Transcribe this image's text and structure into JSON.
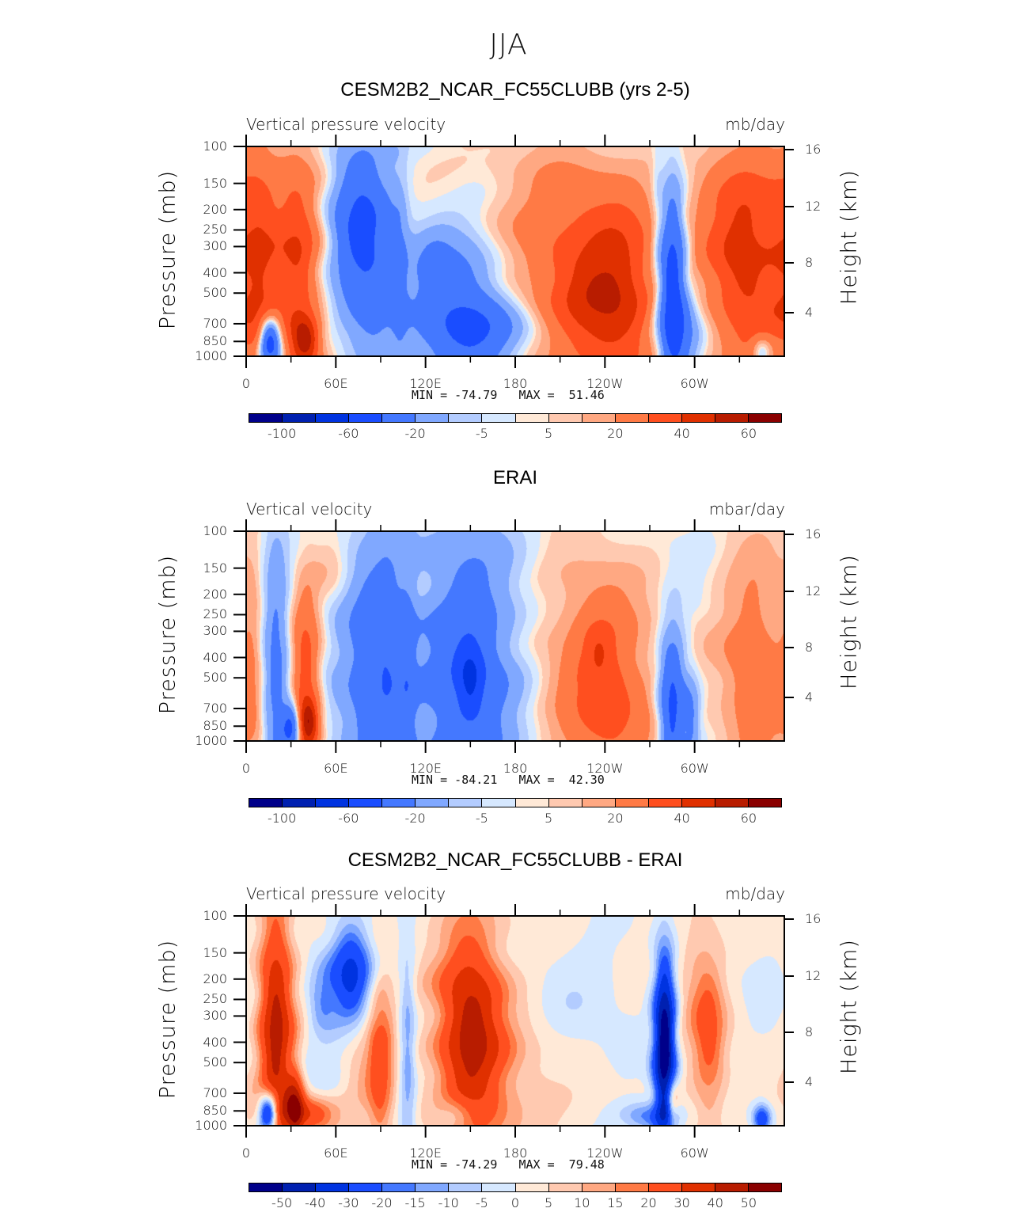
{
  "figure": {
    "title": "JJA"
  },
  "colormap": [
    "#00008a",
    "#0020b0",
    "#0033e0",
    "#1a4dff",
    "#4478ff",
    "#80a8ff",
    "#b3ccff",
    "#d6e8ff",
    "#ffe9d7",
    "#ffc9b0",
    "#ffa882",
    "#ff7a45",
    "#ff4f1f",
    "#e03000",
    "#b81c00",
    "#8a0000"
  ],
  "chart_data": [
    {
      "type": "heatmap",
      "title": "CESM2B2_NCAR_FC55CLUBB (yrs 2-5)",
      "left_string": "Vertical pressure velocity",
      "right_string": "mb/day",
      "xlabel": "",
      "ylabel": "Pressure (mb)",
      "ylabel_right": "Height (km)",
      "x_range": [
        0,
        360
      ],
      "x_ticks": [
        0,
        60,
        120,
        180,
        240,
        300
      ],
      "x_tick_labels": [
        "0",
        "60E",
        "120E",
        "180",
        "120W",
        "60W"
      ],
      "x_minor_ticks": [
        30,
        90,
        150,
        210,
        270,
        330
      ],
      "y_range": [
        100,
        1000
      ],
      "y_scale": "log",
      "y_ticks": [
        100,
        150,
        200,
        250,
        300,
        400,
        500,
        700,
        850,
        1000
      ],
      "y_tick_labels": [
        "100",
        "150",
        "200",
        "250",
        "300",
        "400",
        "500",
        "700",
        "850",
        "1000"
      ],
      "y_right_ticks": [
        16,
        12,
        8,
        4
      ],
      "y_right_tick_labels": [
        "16",
        "12",
        "8",
        "4"
      ],
      "min_label": "MIN = -74.79",
      "max_label": "MAX =  51.46",
      "min": -74.79,
      "max": 51.46,
      "levels": [
        -100,
        -80,
        -60,
        -40,
        -20,
        -10,
        -5,
        -1,
        1,
        5,
        10,
        20,
        30,
        40,
        50
      ],
      "colorbar_labels": [
        {
          "edge": 1,
          "text": "-100"
        },
        {
          "edge": 3,
          "text": "-60"
        },
        {
          "edge": 5,
          "text": "-20"
        },
        {
          "edge": 7,
          "text": "-5"
        },
        {
          "edge": 9,
          "text": "5"
        },
        {
          "edge": 11,
          "text": "20"
        },
        {
          "edge": 13,
          "text": "40"
        },
        {
          "edge": 15,
          "text": "60"
        }
      ],
      "background": 2,
      "features": [
        {
          "lon": 8,
          "p": 420,
          "slon": 10,
          "sp": 0.35,
          "v": 22
        },
        {
          "lon": 35,
          "p": 450,
          "slon": 10,
          "sp": 0.4,
          "v": 22
        },
        {
          "lon": 40,
          "p": 830,
          "slon": 7,
          "sp": 0.08,
          "v": 32
        },
        {
          "lon": 20,
          "p": 200,
          "slon": 25,
          "sp": 0.3,
          "v": 8
        },
        {
          "lon": 16,
          "p": 870,
          "slon": 5,
          "sp": 0.08,
          "v": -65
        },
        {
          "lon": 75,
          "p": 230,
          "slon": 14,
          "sp": 0.3,
          "v": -38
        },
        {
          "lon": 85,
          "p": 450,
          "slon": 14,
          "sp": 0.35,
          "v": -18
        },
        {
          "lon": 103,
          "p": 400,
          "slon": 4,
          "sp": 0.35,
          "v": -12
        },
        {
          "lon": 140,
          "p": 620,
          "slon": 22,
          "sp": 0.28,
          "v": -34
        },
        {
          "lon": 158,
          "p": 780,
          "slon": 18,
          "sp": 0.12,
          "v": -24
        },
        {
          "lon": 125,
          "p": 360,
          "slon": 10,
          "sp": 0.15,
          "v": -10
        },
        {
          "lon": 212,
          "p": 280,
          "slon": 35,
          "sp": 0.3,
          "v": 12
        },
        {
          "lon": 235,
          "p": 560,
          "slon": 22,
          "sp": 0.3,
          "v": 26
        },
        {
          "lon": 255,
          "p": 500,
          "slon": 15,
          "sp": 0.3,
          "v": 14
        },
        {
          "lon": 285,
          "p": 420,
          "slon": 6,
          "sp": 0.3,
          "v": -55
        },
        {
          "lon": 290,
          "p": 800,
          "slon": 10,
          "sp": 0.15,
          "v": -30
        },
        {
          "lon": 275,
          "p": 180,
          "slon": 3,
          "sp": 0.25,
          "v": -6
        },
        {
          "lon": 335,
          "p": 420,
          "slon": 18,
          "sp": 0.35,
          "v": 28
        },
        {
          "lon": 320,
          "p": 200,
          "slon": 20,
          "sp": 0.2,
          "v": 10
        },
        {
          "lon": 345,
          "p": 960,
          "slon": 4,
          "sp": 0.05,
          "v": -20
        },
        {
          "lon": 180,
          "p": 100,
          "slon": 180,
          "sp": 0.06,
          "v": -2
        }
      ]
    },
    {
      "type": "heatmap",
      "title": "ERAI",
      "left_string": "Vertical velocity",
      "right_string": "mbar/day",
      "xlabel": "",
      "ylabel": "Pressure (mb)",
      "ylabel_right": "Height (km)",
      "x_range": [
        0,
        360
      ],
      "x_ticks": [
        0,
        60,
        120,
        180,
        240,
        300
      ],
      "x_tick_labels": [
        "0",
        "60E",
        "120E",
        "180",
        "120W",
        "60W"
      ],
      "x_minor_ticks": [
        30,
        90,
        150,
        210,
        270,
        330
      ],
      "y_range": [
        100,
        1000
      ],
      "y_scale": "log",
      "y_ticks": [
        100,
        150,
        200,
        250,
        300,
        400,
        500,
        700,
        850,
        1000
      ],
      "y_tick_labels": [
        "100",
        "150",
        "200",
        "250",
        "300",
        "400",
        "500",
        "700",
        "850",
        "1000"
      ],
      "y_right_ticks": [
        16,
        12,
        8,
        4
      ],
      "y_right_tick_labels": [
        "16",
        "12",
        "8",
        "4"
      ],
      "min_label": "MIN = -84.21",
      "max_label": "MAX =  42.30",
      "min": -84.21,
      "max": 42.3,
      "levels": [
        -100,
        -80,
        -60,
        -40,
        -20,
        -10,
        -5,
        -1,
        1,
        5,
        10,
        20,
        30,
        40,
        50
      ],
      "colorbar_labels": [
        {
          "edge": 1,
          "text": "-100"
        },
        {
          "edge": 3,
          "text": "-60"
        },
        {
          "edge": 5,
          "text": "-20"
        },
        {
          "edge": 7,
          "text": "-5"
        },
        {
          "edge": 9,
          "text": "5"
        },
        {
          "edge": 11,
          "text": "20"
        },
        {
          "edge": 13,
          "text": "40"
        },
        {
          "edge": 15,
          "text": "60"
        }
      ],
      "background": -2,
      "features": [
        {
          "lon": 4,
          "p": 450,
          "slon": 5,
          "sp": 0.4,
          "v": 8
        },
        {
          "lon": 20,
          "p": 480,
          "slon": 6,
          "sp": 0.4,
          "v": -26
        },
        {
          "lon": 30,
          "p": 880,
          "slon": 4,
          "sp": 0.08,
          "v": -45
        },
        {
          "lon": 40,
          "p": 560,
          "slon": 7,
          "sp": 0.35,
          "v": 28
        },
        {
          "lon": 42,
          "p": 820,
          "slon": 5,
          "sp": 0.08,
          "v": 30
        },
        {
          "lon": 58,
          "p": 150,
          "slon": 10,
          "sp": 0.1,
          "v": 8
        },
        {
          "lon": 85,
          "p": 470,
          "slon": 16,
          "sp": 0.45,
          "v": -28
        },
        {
          "lon": 95,
          "p": 420,
          "slon": 7,
          "sp": 0.3,
          "v": -15
        },
        {
          "lon": 108,
          "p": 500,
          "slon": 4,
          "sp": 0.4,
          "v": -15
        },
        {
          "lon": 148,
          "p": 520,
          "slon": 22,
          "sp": 0.45,
          "v": -36
        },
        {
          "lon": 150,
          "p": 500,
          "slon": 6,
          "sp": 0.12,
          "v": -30
        },
        {
          "lon": 235,
          "p": 480,
          "slon": 28,
          "sp": 0.45,
          "v": 18
        },
        {
          "lon": 236,
          "p": 350,
          "slon": 8,
          "sp": 0.1,
          "v": 12
        },
        {
          "lon": 245,
          "p": 750,
          "slon": 18,
          "sp": 0.2,
          "v": 12
        },
        {
          "lon": 285,
          "p": 700,
          "slon": 6,
          "sp": 0.25,
          "v": -48
        },
        {
          "lon": 298,
          "p": 800,
          "slon": 4,
          "sp": 0.15,
          "v": -20
        },
        {
          "lon": 340,
          "p": 500,
          "slon": 18,
          "sp": 0.45,
          "v": 18
        },
        {
          "lon": 180,
          "p": 120,
          "slon": 60,
          "sp": 0.1,
          "v": -2
        }
      ]
    },
    {
      "type": "heatmap",
      "title": "CESM2B2_NCAR_FC55CLUBB - ERAI",
      "left_string": "Vertical pressure velocity",
      "right_string": "mb/day",
      "xlabel": "",
      "ylabel": "Pressure (mb)",
      "ylabel_right": "Height (km)",
      "x_range": [
        0,
        360
      ],
      "x_ticks": [
        0,
        60,
        120,
        180,
        240,
        300
      ],
      "x_tick_labels": [
        "0",
        "60E",
        "120E",
        "180",
        "120W",
        "60W"
      ],
      "x_minor_ticks": [
        30,
        90,
        150,
        210,
        270,
        330
      ],
      "y_range": [
        100,
        1000
      ],
      "y_scale": "log",
      "y_ticks": [
        100,
        150,
        200,
        250,
        300,
        400,
        500,
        700,
        850,
        1000
      ],
      "y_tick_labels": [
        "100",
        "150",
        "200",
        "250",
        "300",
        "400",
        "500",
        "700",
        "850",
        "1000"
      ],
      "y_right_ticks": [
        16,
        12,
        8,
        4
      ],
      "y_right_tick_labels": [
        "16",
        "12",
        "8",
        "4"
      ],
      "min_label": "MIN = -74.29",
      "max_label": "MAX =  79.48",
      "min": -74.29,
      "max": 79.48,
      "levels": [
        -50,
        -40,
        -30,
        -20,
        -15,
        -10,
        -5,
        0,
        5,
        10,
        15,
        20,
        30,
        40,
        50
      ],
      "colorbar_labels": [
        {
          "edge": 1,
          "text": "-50"
        },
        {
          "edge": 2,
          "text": "-40"
        },
        {
          "edge": 3,
          "text": "-30"
        },
        {
          "edge": 4,
          "text": "-20"
        },
        {
          "edge": 5,
          "text": "-15"
        },
        {
          "edge": 6,
          "text": "-10"
        },
        {
          "edge": 7,
          "text": "-5"
        },
        {
          "edge": 8,
          "text": "0"
        },
        {
          "edge": 9,
          "text": "5"
        },
        {
          "edge": 10,
          "text": "10"
        },
        {
          "edge": 11,
          "text": "15"
        },
        {
          "edge": 12,
          "text": "20"
        },
        {
          "edge": 13,
          "text": "30"
        },
        {
          "edge": 14,
          "text": "40"
        },
        {
          "edge": 15,
          "text": "50"
        }
      ],
      "background": 2,
      "features": [
        {
          "lon": 20,
          "p": 380,
          "slon": 8,
          "sp": 0.45,
          "v": 42
        },
        {
          "lon": 15,
          "p": 870,
          "slon": 5,
          "sp": 0.07,
          "v": -62
        },
        {
          "lon": 40,
          "p": 880,
          "slon": 16,
          "sp": 0.06,
          "v": 30
        },
        {
          "lon": 33,
          "p": 780,
          "slon": 4,
          "sp": 0.12,
          "v": 30
        },
        {
          "lon": 70,
          "p": 190,
          "slon": 10,
          "sp": 0.18,
          "v": -36
        },
        {
          "lon": 50,
          "p": 250,
          "slon": 7,
          "sp": 0.12,
          "v": -15
        },
        {
          "lon": 60,
          "p": 600,
          "slon": 14,
          "sp": 0.25,
          "v": -6
        },
        {
          "lon": 90,
          "p": 500,
          "slon": 6,
          "sp": 0.3,
          "v": 20
        },
        {
          "lon": 75,
          "p": 500,
          "slon": 12,
          "sp": 0.25,
          "v": 10
        },
        {
          "lon": 108,
          "p": 450,
          "slon": 4,
          "sp": 0.4,
          "v": -16
        },
        {
          "lon": 150,
          "p": 330,
          "slon": 15,
          "sp": 0.35,
          "v": 38
        },
        {
          "lon": 140,
          "p": 880,
          "slon": 10,
          "sp": 0.06,
          "v": -14
        },
        {
          "lon": 170,
          "p": 580,
          "slon": 30,
          "sp": 0.3,
          "v": 10
        },
        {
          "lon": 220,
          "p": 280,
          "slon": 30,
          "sp": 0.25,
          "v": -6
        },
        {
          "lon": 280,
          "p": 420,
          "slon": 5,
          "sp": 0.3,
          "v": -62
        },
        {
          "lon": 285,
          "p": 760,
          "slon": 3,
          "sp": 0.08,
          "v": 20
        },
        {
          "lon": 270,
          "p": 900,
          "slon": 12,
          "sp": 0.05,
          "v": -20
        },
        {
          "lon": 310,
          "p": 400,
          "slon": 8,
          "sp": 0.3,
          "v": 18
        },
        {
          "lon": 300,
          "p": 220,
          "slon": 10,
          "sp": 0.2,
          "v": 8
        },
        {
          "lon": 345,
          "p": 930,
          "slon": 4,
          "sp": 0.05,
          "v": -30
        },
        {
          "lon": 345,
          "p": 180,
          "slon": 15,
          "sp": 0.15,
          "v": -4
        }
      ]
    }
  ]
}
